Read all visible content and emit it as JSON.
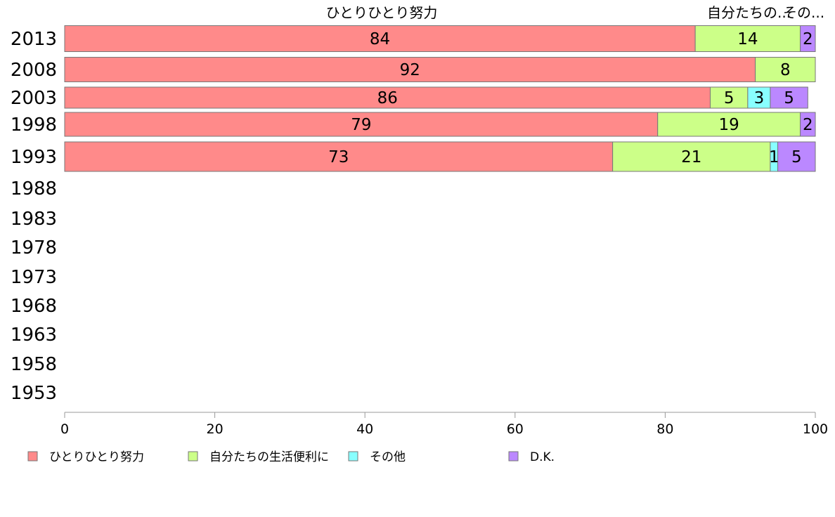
{
  "chart_data": {
    "type": "bar",
    "orientation": "horizontal",
    "stacked": true,
    "categories": [
      "2013",
      "2008",
      "2003",
      "1998",
      "1993",
      "1988",
      "1983",
      "1978",
      "1973",
      "1968",
      "1963",
      "1958",
      "1953"
    ],
    "series": [
      {
        "name": "ひとりひとり努力",
        "color": "#ff8a8a",
        "values": [
          84,
          92,
          86,
          79,
          73,
          null,
          null,
          null,
          null,
          null,
          null,
          null,
          null
        ]
      },
      {
        "name": "自分たちの生活便利に",
        "color": "#ccff88",
        "values": [
          14,
          8,
          5,
          19,
          21,
          null,
          null,
          null,
          null,
          null,
          null,
          null,
          null
        ]
      },
      {
        "name": "その他",
        "color": "#88ffff",
        "values": [
          0,
          0,
          3,
          0,
          1,
          null,
          null,
          null,
          null,
          null,
          null,
          null,
          null
        ]
      },
      {
        "name": "D.K.",
        "color": "#bb88ff",
        "values": [
          2,
          0,
          5,
          2,
          5,
          null,
          null,
          null,
          null,
          null,
          null,
          null,
          null
        ]
      }
    ],
    "top_labels": [
      "ひとりひとり努力",
      "自分たちの...",
      "その..."
    ],
    "xlim": [
      0,
      100
    ],
    "xticks": [
      0,
      20,
      40,
      60,
      80,
      100
    ],
    "legend_position": "bottom",
    "grid": false
  }
}
